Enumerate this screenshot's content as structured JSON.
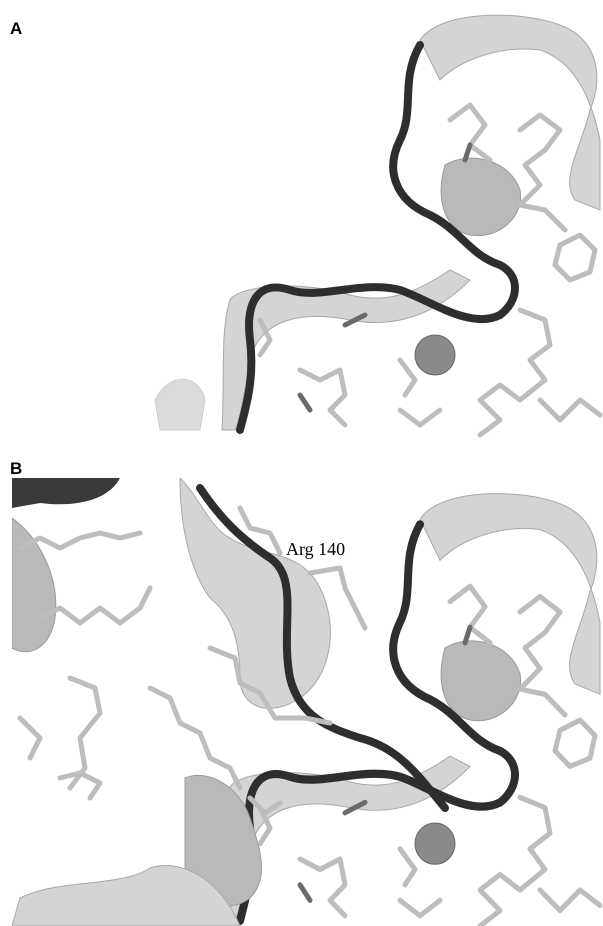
{
  "panels": [
    {
      "label": "A"
    },
    {
      "label": "B",
      "annotation": "Arg 140"
    }
  ]
}
